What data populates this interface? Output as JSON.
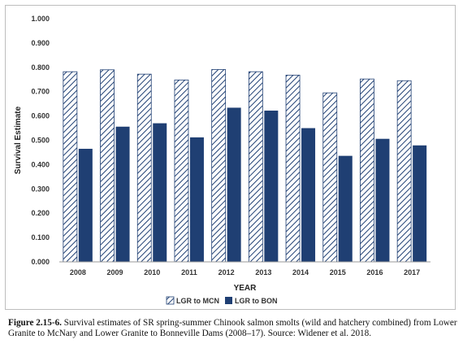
{
  "chart_data": {
    "type": "bar",
    "categories": [
      "2008",
      "2009",
      "2010",
      "2011",
      "2012",
      "2013",
      "2014",
      "2015",
      "2016",
      "2017"
    ],
    "series": [
      {
        "name": "LGR to MCN",
        "values": [
          0.782,
          0.79,
          0.772,
          0.748,
          0.791,
          0.782,
          0.768,
          0.695,
          0.752,
          0.745
        ],
        "pattern": "diagonal-hatch",
        "color": "#1F3F73"
      },
      {
        "name": "LGR to BON",
        "values": [
          0.465,
          0.556,
          0.57,
          0.512,
          0.634,
          0.622,
          0.55,
          0.436,
          0.506,
          0.479
        ],
        "pattern": "solid",
        "color": "#1F3F73"
      }
    ],
    "xlabel": "YEAR",
    "ylabel": "Survival Estimate",
    "ylim": [
      0,
      1.0
    ],
    "yticks": [
      "0.000",
      "0.100",
      "0.200",
      "0.300",
      "0.400",
      "0.500",
      "0.600",
      "0.700",
      "0.800",
      "0.900",
      "1.000"
    ],
    "grid": false,
    "legend_position": "bottom-center"
  },
  "caption": {
    "label": "Figure 2.15-6.",
    "text": " Survival estimates of SR spring-summer Chinook salmon smolts (wild and hatchery combined) from Lower Granite to McNary and Lower Granite to Bonneville Dams (2008–17). Source: Widener et al. 2018."
  }
}
